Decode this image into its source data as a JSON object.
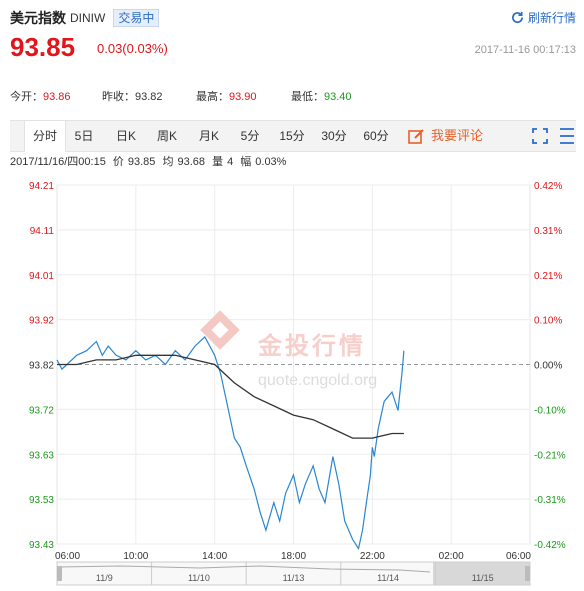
{
  "header": {
    "name": "美元指数",
    "code": "DINIW",
    "status": "交易中",
    "refresh": "刷新行情",
    "price": "93.85",
    "change": "0.03(0.03%)",
    "timestamp": "2017-11-16 00:17:13"
  },
  "stats": {
    "open_label": "今开：",
    "open": "93.86",
    "prev_label": "昨收：",
    "prev": "93.82",
    "high_label": "最高：",
    "high": "93.90",
    "low_label": "最低：",
    "low": "93.40"
  },
  "tabs": [
    "分时",
    "5日",
    "日K",
    "周K",
    "月K",
    "5分",
    "15分",
    "30分",
    "60分"
  ],
  "active_tab": "分时",
  "comment_label": "我要评论",
  "info": {
    "time": "2017/11/16/四00:15",
    "price_label": "价",
    "price": "93.85",
    "avg_label": "均",
    "avg": "93.68",
    "vol_label": "量",
    "vol": "4",
    "amp_label": "幅",
    "amp": "0.03%"
  },
  "watermark": {
    "text": "金投行情",
    "url": "quote.cngold.org"
  },
  "colors": {
    "up": "#e0161b",
    "down": "#1a9a1a",
    "price_line": "#2a86d0",
    "avg_line": "#333333",
    "accent": "#2a6cc8"
  },
  "chart_data": {
    "type": "line",
    "x_ticks": [
      "06:00",
      "10:00",
      "14:00",
      "18:00",
      "22:00",
      "02:00",
      "06:00"
    ],
    "y_ticks_left": [
      "94.21",
      "94.11",
      "94.01",
      "93.92",
      "93.82",
      "93.72",
      "93.63",
      "93.53",
      "93.43"
    ],
    "y_ticks_right": [
      "0.42%",
      "0.31%",
      "0.21%",
      "0.10%",
      "0.00%",
      "-0.10%",
      "-0.21%",
      "-0.31%",
      "-0.42%"
    ],
    "ylim": [
      93.43,
      94.21
    ],
    "x_range_hours": [
      0,
      24
    ],
    "reference": 93.82,
    "series": [
      {
        "x": [
          0,
          0.25,
          0.5,
          1,
          1.5,
          2,
          2.3,
          2.6,
          3,
          3.5,
          4,
          4.5,
          5,
          5.5,
          6,
          6.5,
          7,
          7.5,
          8,
          8.3,
          8.7,
          9,
          9.3,
          9.6,
          10,
          10.3,
          10.6,
          11,
          11.3,
          11.6,
          12,
          12.3,
          12.6,
          13,
          13.3,
          13.6,
          14,
          14.3,
          14.6,
          15,
          15.3,
          15.5,
          15.7,
          15.9,
          16,
          16.1,
          16.3,
          16.6,
          17,
          17.3,
          17.5,
          17.6
        ],
        "values": [
          93.83,
          93.81,
          93.82,
          93.84,
          93.85,
          93.87,
          93.84,
          93.86,
          93.84,
          93.83,
          93.85,
          93.83,
          93.84,
          93.82,
          93.85,
          93.83,
          93.86,
          93.88,
          93.84,
          93.8,
          93.72,
          93.66,
          93.64,
          93.6,
          93.55,
          93.5,
          93.46,
          93.52,
          93.48,
          93.54,
          93.58,
          93.52,
          93.56,
          93.6,
          93.55,
          93.52,
          93.62,
          93.56,
          93.48,
          93.44,
          93.42,
          93.46,
          93.52,
          93.58,
          93.64,
          93.62,
          93.68,
          93.74,
          93.76,
          93.72,
          93.8,
          93.85
        ]
      },
      {
        "x": [
          0,
          1,
          2,
          3,
          4,
          5,
          6,
          7,
          8,
          9,
          10,
          11,
          12,
          13,
          14,
          15,
          16,
          17,
          17.6
        ],
        "values": [
          93.82,
          93.82,
          93.83,
          93.83,
          93.84,
          93.84,
          93.84,
          93.83,
          93.82,
          93.78,
          93.75,
          93.73,
          93.71,
          93.7,
          93.68,
          93.66,
          93.66,
          93.67,
          93.67
        ]
      }
    ],
    "navigator": {
      "labels": [
        "11/9",
        "11/10",
        "11/13",
        "11/14",
        "11/15"
      ]
    }
  }
}
